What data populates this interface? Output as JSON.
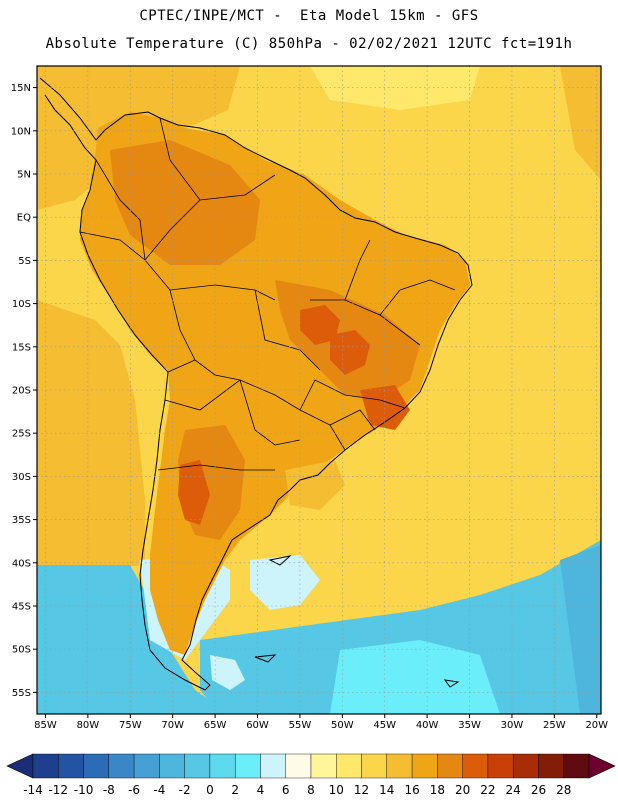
{
  "header": {
    "line1": "CPTEC/INPE/MCT -  Eta Model 15km - GFS",
    "line2": "Absolute Temperature (C) 850hPa - 02/02/2021 12UTC fct=191h"
  },
  "map": {
    "lat_labels": [
      "15N",
      "10N",
      "5N",
      "EQ",
      "5S",
      "10S",
      "15S",
      "20S",
      "25S",
      "30S",
      "35S",
      "40S",
      "45S",
      "50S",
      "55S"
    ],
    "lat_values": [
      15,
      10,
      5,
      0,
      -5,
      -10,
      -15,
      -20,
      -25,
      -30,
      -35,
      -40,
      -45,
      -50,
      -55
    ],
    "lon_labels": [
      "85W",
      "80W",
      "75W",
      "70W",
      "65W",
      "60W",
      "55W",
      "50W",
      "45W",
      "40W",
      "35W",
      "30W",
      "25W",
      "20W"
    ],
    "lon_values": [
      -85,
      -80,
      -75,
      -70,
      -65,
      -60,
      -55,
      -50,
      -45,
      -40,
      -35,
      -30,
      -25,
      -20
    ],
    "lat_range": [
      -57.5,
      17.5
    ],
    "lon_range": [
      -86,
      -19.5
    ],
    "grid": true
  },
  "colorbar": {
    "labels": [
      "-14",
      "-12",
      "-10",
      "-8",
      "-6",
      "-4",
      "-2",
      "0",
      "2",
      "4",
      "6",
      "8",
      "10",
      "12",
      "14",
      "16",
      "18",
      "20",
      "22",
      "24",
      "26",
      "28"
    ],
    "colors": [
      "#1e3f8e",
      "#2453a3",
      "#2c6cb6",
      "#3a86c6",
      "#46a0d3",
      "#4eb6dc",
      "#56c8e5",
      "#5edaee",
      "#6aeefa",
      "#cdf4fb",
      "#fffbe6",
      "#fff59a",
      "#ffe86a",
      "#fbd54a",
      "#f5bd32",
      "#efa516",
      "#e48812",
      "#dc5c0a",
      "#c84008",
      "#a82d06",
      "#841d08",
      "#600a12"
    ],
    "low_arrow_color": "#1b2d78",
    "high_arrow_color": "#6e0030"
  },
  "colors": {
    "warm_land": "#efa516",
    "hot_land": "#e48812",
    "hottest": "#dc5c0a",
    "ocean_warm": "#fbd54a",
    "ocean_mid": "#ffe86a",
    "cold_pale": "#cdf4fb",
    "cold_cyan": "#6aeefa",
    "cold_blue": "#56c8e5"
  }
}
